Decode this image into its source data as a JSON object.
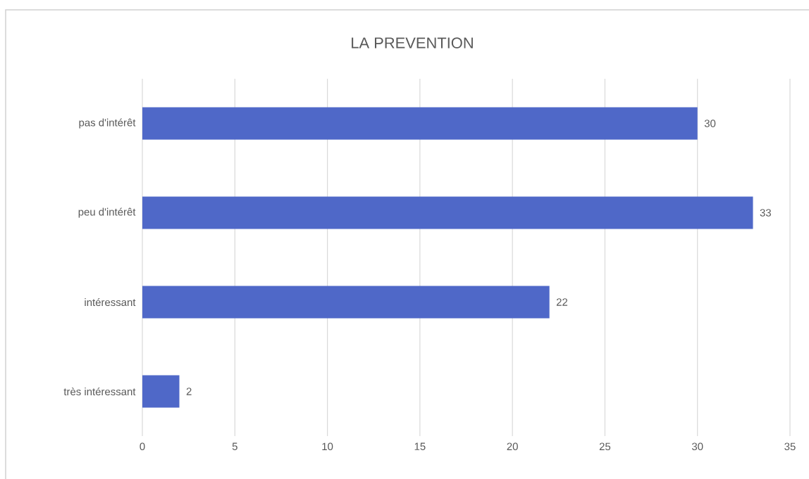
{
  "chart_data": {
    "type": "bar",
    "orientation": "horizontal",
    "title": "LA PREVENTION",
    "categories": [
      "pas d'intérêt",
      "peu d'intérêt",
      "intéressant",
      "très intéressant"
    ],
    "values": [
      30,
      33,
      22,
      2
    ],
    "color": "#4f68c8",
    "xlim": [
      0,
      35
    ],
    "xticks": [
      0,
      5,
      10,
      15,
      20,
      25,
      30,
      35
    ],
    "grid": "x",
    "data_labels": true
  }
}
